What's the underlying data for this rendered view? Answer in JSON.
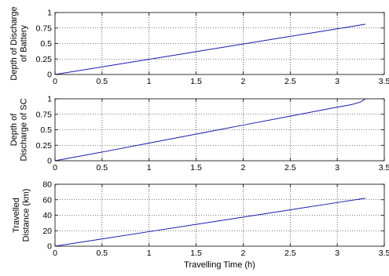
{
  "chart_data": [
    {
      "type": "line",
      "title": "",
      "xlabel": "",
      "ylabel_lines": [
        "Depth of Discharge",
        "of Battery"
      ],
      "xlim": [
        0,
        3.5
      ],
      "ylim": [
        0,
        1
      ],
      "xticks": [
        0,
        0.5,
        1,
        1.5,
        2,
        2.5,
        3,
        3.5
      ],
      "yticks": [
        0,
        0.25,
        0.5,
        0.75,
        1
      ],
      "xtick_labels": [
        "0",
        "0.5",
        "1",
        "1.5",
        "2",
        "2.5",
        "3",
        "3.5"
      ],
      "ytick_labels": [
        "0",
        "0.25",
        "0.5",
        "0.75",
        "1"
      ],
      "grid": true,
      "line_color": "#1a1aa8",
      "series": [
        {
          "x": [
            0,
            0.5,
            1,
            1.5,
            2,
            2.5,
            3,
            3.3
          ],
          "y": [
            0,
            0.123,
            0.246,
            0.369,
            0.492,
            0.615,
            0.738,
            0.812
          ]
        }
      ]
    },
    {
      "type": "line",
      "title": "",
      "xlabel": "",
      "ylabel_lines": [
        "Depth of",
        "Discharge of SC"
      ],
      "xlim": [
        0,
        3.5
      ],
      "ylim": [
        0,
        1
      ],
      "xticks": [
        0,
        0.5,
        1,
        1.5,
        2,
        2.5,
        3,
        3.5
      ],
      "yticks": [
        0,
        0.25,
        0.5,
        0.75,
        1
      ],
      "xtick_labels": [
        "0",
        "0.5",
        "1",
        "1.5",
        "2",
        "2.5",
        "3",
        "3.5"
      ],
      "ytick_labels": [
        "0",
        "0.25",
        "0.5",
        "0.75",
        "1"
      ],
      "grid": true,
      "line_color": "#1a1aa8",
      "series": [
        {
          "x": [
            0,
            0.5,
            1,
            1.5,
            2,
            2.5,
            3,
            3.15,
            3.25,
            3.3
          ],
          "y": [
            0,
            0.14,
            0.285,
            0.43,
            0.575,
            0.72,
            0.865,
            0.905,
            0.95,
            1.0
          ]
        }
      ]
    },
    {
      "type": "line",
      "title": "",
      "xlabel": "Travelling Time (h)",
      "ylabel_lines": [
        "Travelled",
        "Distance (km)"
      ],
      "xlim": [
        0,
        3.5
      ],
      "ylim": [
        0,
        80
      ],
      "xticks": [
        0,
        0.5,
        1,
        1.5,
        2,
        2.5,
        3,
        3.5
      ],
      "yticks": [
        0,
        20,
        40,
        60,
        80
      ],
      "xtick_labels": [
        "0",
        "0.5",
        "1",
        "1.5",
        "2",
        "2.5",
        "3",
        "3.5"
      ],
      "ytick_labels": [
        "0",
        "20",
        "40",
        "60",
        "80"
      ],
      "grid": true,
      "line_color": "#1a1aa8",
      "series": [
        {
          "x": [
            0,
            0.5,
            1,
            1.5,
            2,
            2.5,
            3,
            3.3
          ],
          "y": [
            0,
            9.4,
            18.8,
            28.2,
            37.6,
            47.0,
            56.4,
            62.0
          ]
        }
      ]
    }
  ]
}
